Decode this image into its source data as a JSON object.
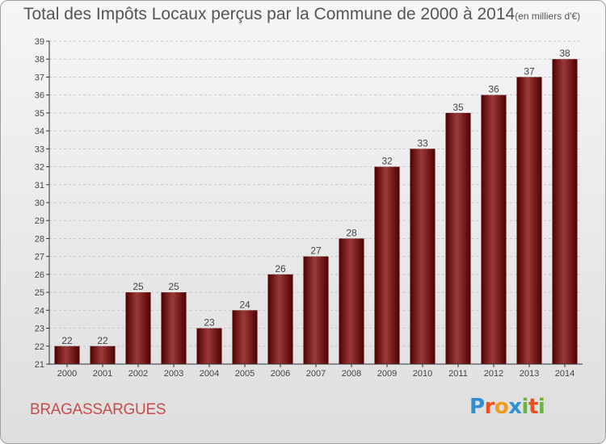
{
  "title": "Total des Impôts Locaux perçus par la Commune de 2000 à 2014",
  "unit_note": "(en milliers d'€)",
  "commune": "BRAGASSARGUES",
  "logo": {
    "letters": [
      "P",
      "r",
      "o",
      "x",
      "i",
      "t",
      "i"
    ],
    "colors": [
      "#2f8fd0",
      "#e8501e",
      "#f29b1d",
      "#2f8fd0",
      "#6db33f",
      "#e8501e",
      "#6db33f"
    ]
  },
  "colors": {
    "bar_dark": "#4e0000",
    "bar_light": "#9c3a3a",
    "axis": "#333333",
    "grid": "#c8c8c8"
  },
  "chart_data": {
    "type": "bar",
    "title": "Total des Impôts Locaux perçus par la Commune de 2000 à 2014",
    "xlabel": "",
    "ylabel": "",
    "categories": [
      "2000",
      "2001",
      "2002",
      "2003",
      "2004",
      "2005",
      "2006",
      "2007",
      "2008",
      "2009",
      "2010",
      "2011",
      "2012",
      "2013",
      "2014"
    ],
    "values": [
      22,
      22,
      25,
      25,
      23,
      24,
      26,
      27,
      28,
      32,
      33,
      35,
      36,
      37,
      38
    ],
    "ylim": [
      21,
      39
    ],
    "yticks": [
      21,
      22,
      23,
      24,
      25,
      26,
      27,
      28,
      29,
      30,
      31,
      32,
      33,
      34,
      35,
      36,
      37,
      38,
      39
    ],
    "grid": true
  }
}
